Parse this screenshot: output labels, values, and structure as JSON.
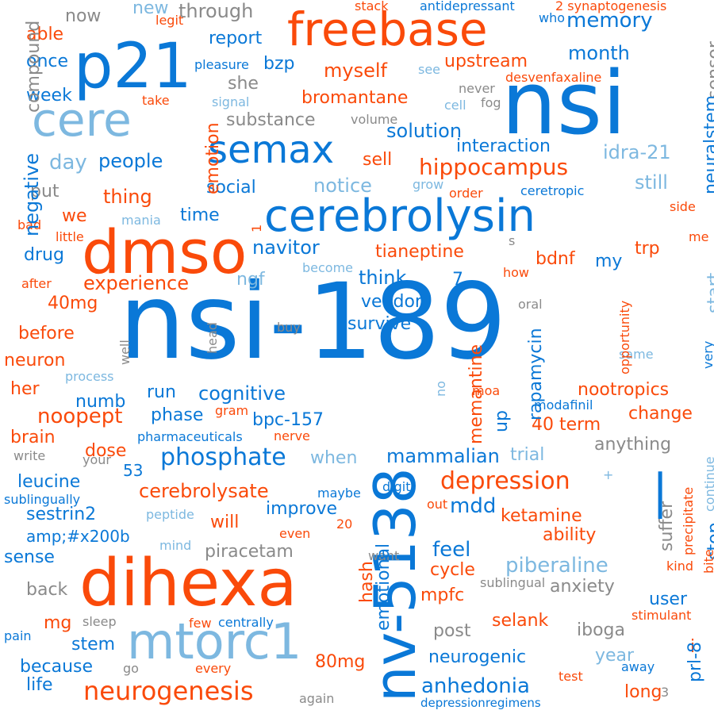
{
  "palette": {
    "blue": "#0a78d7",
    "orange": "#fa4a0a",
    "light_blue": "#7db8e0",
    "gray": "#8a8a8a"
  },
  "words": [
    {
      "text": "nsi-189",
      "size": 132,
      "color": "#0a78d7",
      "rotate": false
    },
    {
      "text": "nv-5138",
      "size": 72,
      "color": "#0a78d7",
      "rotate": true
    },
    {
      "text": "dihexa",
      "size": 82,
      "color": "#fa4a0a",
      "rotate": false
    },
    {
      "text": "nsi",
      "size": 110,
      "color": "#0a78d7",
      "rotate": false
    },
    {
      "text": "p21",
      "size": 78,
      "color": "#0a78d7",
      "rotate": false
    },
    {
      "text": "freebase",
      "size": 58,
      "color": "#fa4a0a",
      "rotate": false
    },
    {
      "text": "cerebrolysin",
      "size": 56,
      "color": "#0a78d7",
      "rotate": false
    },
    {
      "text": "dmso",
      "size": 76,
      "color": "#fa4a0a",
      "rotate": false
    },
    {
      "text": "cere",
      "size": 58,
      "color": "#7db8e0",
      "rotate": false
    },
    {
      "text": "semax",
      "size": 48,
      "color": "#0a78d7",
      "rotate": false
    },
    {
      "text": "mtorc1",
      "size": 62,
      "color": "#7db8e0",
      "rotate": false
    },
    {
      "text": "neurogenesis",
      "size": 32,
      "color": "#fa4a0a",
      "rotate": false
    },
    {
      "text": "phosphate",
      "size": 30,
      "color": "#0a78d7",
      "rotate": false
    },
    {
      "text": "depression",
      "size": 30,
      "color": "#fa4a0a",
      "rotate": false
    },
    {
      "text": "hippocampus",
      "size": 28,
      "color": "#fa4a0a",
      "rotate": false
    },
    {
      "text": "anhedonia",
      "size": 26,
      "color": "#0a78d7",
      "rotate": false
    },
    {
      "text": "piberaline",
      "size": 26,
      "color": "#7db8e0",
      "rotate": false
    },
    {
      "text": "cerebrolysate",
      "size": 24,
      "color": "#fa4a0a",
      "rotate": false
    },
    {
      "text": "mammalian",
      "size": 24,
      "color": "#0a78d7",
      "rotate": false
    },
    {
      "text": "noopept",
      "size": 26,
      "color": "#fa4a0a",
      "rotate": false
    },
    {
      "text": "nootropics",
      "size": 22,
      "color": "#fa4a0a",
      "rotate": false
    },
    {
      "text": "ketamine",
      "size": 22,
      "color": "#fa4a0a",
      "rotate": false
    },
    {
      "text": "neurogenic",
      "size": 22,
      "color": "#0a78d7",
      "rotate": false
    },
    {
      "text": "experience",
      "size": 24,
      "color": "#fa4a0a",
      "rotate": false
    },
    {
      "text": "cognitive",
      "size": 24,
      "color": "#0a78d7",
      "rotate": false
    },
    {
      "text": "solution",
      "size": 24,
      "color": "#0a78d7",
      "rotate": false
    },
    {
      "text": "interaction",
      "size": 22,
      "color": "#0a78d7",
      "rotate": false
    },
    {
      "text": "memory",
      "size": 26,
      "color": "#0a78d7",
      "rotate": false
    },
    {
      "text": "upstream",
      "size": 22,
      "color": "#fa4a0a",
      "rotate": false
    },
    {
      "text": "bromantane",
      "size": 22,
      "color": "#fa4a0a",
      "rotate": false
    },
    {
      "text": "substance",
      "size": 22,
      "color": "#8a8a8a",
      "rotate": false
    },
    {
      "text": "tianeptine",
      "size": 22,
      "color": "#fa4a0a",
      "rotate": false
    },
    {
      "text": "navitor",
      "size": 24,
      "color": "#0a78d7",
      "rotate": false
    },
    {
      "text": "survive",
      "size": 22,
      "color": "#0a78d7",
      "rotate": false
    },
    {
      "text": "vendor",
      "size": 22,
      "color": "#0a78d7",
      "rotate": false
    },
    {
      "text": "think",
      "size": 24,
      "color": "#0a78d7",
      "rotate": false
    },
    {
      "text": "notice",
      "size": 24,
      "color": "#7db8e0",
      "rotate": false
    },
    {
      "text": "social",
      "size": 22,
      "color": "#0a78d7",
      "rotate": false
    },
    {
      "text": "myself",
      "size": 24,
      "color": "#fa4a0a",
      "rotate": false
    },
    {
      "text": "report",
      "size": 22,
      "color": "#0a78d7",
      "rotate": false
    },
    {
      "text": "through",
      "size": 24,
      "color": "#8a8a8a",
      "rotate": false
    },
    {
      "text": "month",
      "size": 24,
      "color": "#0a78d7",
      "rotate": false
    },
    {
      "text": "idra-21",
      "size": 24,
      "color": "#7db8e0",
      "rotate": false
    },
    {
      "text": "still",
      "size": 24,
      "color": "#7db8e0",
      "rotate": false
    },
    {
      "text": "people",
      "size": 24,
      "color": "#0a78d7",
      "rotate": false
    },
    {
      "text": "day",
      "size": 26,
      "color": "#7db8e0",
      "rotate": false
    },
    {
      "text": "thing",
      "size": 24,
      "color": "#fa4a0a",
      "rotate": false
    },
    {
      "text": "time",
      "size": 22,
      "color": "#0a78d7",
      "rotate": false
    },
    {
      "text": "drug",
      "size": 22,
      "color": "#0a78d7",
      "rotate": false
    },
    {
      "text": "week",
      "size": 22,
      "color": "#0a78d7",
      "rotate": false
    },
    {
      "text": "once",
      "size": 22,
      "color": "#0a78d7",
      "rotate": false
    },
    {
      "text": "able",
      "size": 22,
      "color": "#fa4a0a",
      "rotate": false
    },
    {
      "text": "now",
      "size": 22,
      "color": "#8a8a8a",
      "rotate": false
    },
    {
      "text": "new",
      "size": 22,
      "color": "#7db8e0",
      "rotate": false
    },
    {
      "text": "bzp",
      "size": 22,
      "color": "#0a78d7",
      "rotate": false
    },
    {
      "text": "she",
      "size": 22,
      "color": "#8a8a8a",
      "rotate": false
    },
    {
      "text": "sell",
      "size": 22,
      "color": "#fa4a0a",
      "rotate": false
    },
    {
      "text": "put",
      "size": 22,
      "color": "#8a8a8a",
      "rotate": false
    },
    {
      "text": "we",
      "size": 22,
      "color": "#fa4a0a",
      "rotate": false
    },
    {
      "text": "ngf",
      "size": 22,
      "color": "#7db8e0",
      "rotate": false
    },
    {
      "text": "bdnf",
      "size": 22,
      "color": "#fa4a0a",
      "rotate": false
    },
    {
      "text": "my",
      "size": 22,
      "color": "#0a78d7",
      "rotate": false
    },
    {
      "text": "trp",
      "size": 22,
      "color": "#fa4a0a",
      "rotate": false
    },
    {
      "text": "7",
      "size": 22,
      "color": "#0a78d7",
      "rotate": false
    },
    {
      "text": "40mg",
      "size": 22,
      "color": "#fa4a0a",
      "rotate": false
    },
    {
      "text": "before",
      "size": 22,
      "color": "#fa4a0a",
      "rotate": false
    },
    {
      "text": "neuron",
      "size": 22,
      "color": "#fa4a0a",
      "rotate": false
    },
    {
      "text": "her",
      "size": 22,
      "color": "#fa4a0a",
      "rotate": false
    },
    {
      "text": "numb",
      "size": 22,
      "color": "#0a78d7",
      "rotate": false
    },
    {
      "text": "run",
      "size": 22,
      "color": "#0a78d7",
      "rotate": false
    },
    {
      "text": "phase",
      "size": 22,
      "color": "#0a78d7",
      "rotate": false
    },
    {
      "text": "bpc-157",
      "size": 22,
      "color": "#0a78d7",
      "rotate": false
    },
    {
      "text": "40 term",
      "size": 22,
      "color": "#fa4a0a",
      "rotate": false
    },
    {
      "text": "change",
      "size": 22,
      "color": "#fa4a0a",
      "rotate": false
    },
    {
      "text": "brain",
      "size": 22,
      "color": "#fa4a0a",
      "rotate": false
    },
    {
      "text": "dose",
      "size": 22,
      "color": "#fa4a0a",
      "rotate": false
    },
    {
      "text": "when",
      "size": 22,
      "color": "#7db8e0",
      "rotate": false
    },
    {
      "text": "trial",
      "size": 22,
      "color": "#7db8e0",
      "rotate": false
    },
    {
      "text": "anything",
      "size": 22,
      "color": "#8a8a8a",
      "rotate": false
    },
    {
      "text": "53",
      "size": 20,
      "color": "#0a78d7",
      "rotate": false
    },
    {
      "text": "leucine",
      "size": 22,
      "color": "#0a78d7",
      "rotate": false
    },
    {
      "text": "sestrin2",
      "size": 22,
      "color": "#0a78d7",
      "rotate": false
    },
    {
      "text": "amp;#x200b",
      "size": 20,
      "color": "#0a78d7",
      "rotate": false
    },
    {
      "text": "sense",
      "size": 22,
      "color": "#0a78d7",
      "rotate": false
    },
    {
      "text": "back",
      "size": 22,
      "color": "#8a8a8a",
      "rotate": false
    },
    {
      "text": "mg",
      "size": 22,
      "color": "#fa4a0a",
      "rotate": false
    },
    {
      "text": "stem",
      "size": 22,
      "color": "#0a78d7",
      "rotate": false
    },
    {
      "text": "because",
      "size": 22,
      "color": "#0a78d7",
      "rotate": false
    },
    {
      "text": "life",
      "size": 22,
      "color": "#0a78d7",
      "rotate": false
    },
    {
      "text": "improve",
      "size": 22,
      "color": "#0a78d7",
      "rotate": false
    },
    {
      "text": "will",
      "size": 22,
      "color": "#fa4a0a",
      "rotate": false
    },
    {
      "text": "piracetam",
      "size": 22,
      "color": "#8a8a8a",
      "rotate": false
    },
    {
      "text": "mdd",
      "size": 26,
      "color": "#0a78d7",
      "rotate": false
    },
    {
      "text": "feel",
      "size": 26,
      "color": "#0a78d7",
      "rotate": false
    },
    {
      "text": "cycle",
      "size": 22,
      "color": "#fa4a0a",
      "rotate": false
    },
    {
      "text": "mpfc",
      "size": 22,
      "color": "#fa4a0a",
      "rotate": false
    },
    {
      "text": "post",
      "size": 22,
      "color": "#8a8a8a",
      "rotate": false
    },
    {
      "text": "selank",
      "size": 22,
      "color": "#fa4a0a",
      "rotate": false
    },
    {
      "text": "iboga",
      "size": 22,
      "color": "#8a8a8a",
      "rotate": false
    },
    {
      "text": "anxiety",
      "size": 22,
      "color": "#8a8a8a",
      "rotate": false
    },
    {
      "text": "ability",
      "size": 22,
      "color": "#fa4a0a",
      "rotate": false
    },
    {
      "text": "user",
      "size": 22,
      "color": "#0a78d7",
      "rotate": false
    },
    {
      "text": "year",
      "size": 22,
      "color": "#7db8e0",
      "rotate": false
    },
    {
      "text": "long",
      "size": 22,
      "color": "#fa4a0a",
      "rotate": false
    },
    {
      "text": "80mg",
      "size": 22,
      "color": "#fa4a0a",
      "rotate": false
    },
    {
      "text": "i",
      "size": 22,
      "color": "#fa4a0a",
      "rotate": false
    },
    {
      "text": "modafinil",
      "size": 16,
      "color": "#0a78d7",
      "rotate": false
    },
    {
      "text": "pharmaceuticals",
      "size": 16,
      "color": "#0a78d7",
      "rotate": false
    },
    {
      "text": "depressionregimens",
      "size": 15,
      "color": "#0a78d7",
      "rotate": false
    },
    {
      "text": "desvenfaxaline",
      "size": 16,
      "color": "#fa4a0a",
      "rotate": false
    },
    {
      "text": "antidepressant",
      "size": 16,
      "color": "#0a78d7",
      "rotate": false
    },
    {
      "text": "2 synaptogenesis",
      "size": 16,
      "color": "#fa4a0a",
      "rotate": false
    },
    {
      "text": "stack",
      "size": 16,
      "color": "#fa4a0a",
      "rotate": false
    },
    {
      "text": "legit",
      "size": 16,
      "color": "#fa4a0a",
      "rotate": false
    },
    {
      "text": "who",
      "size": 16,
      "color": "#0a78d7",
      "rotate": false
    },
    {
      "text": "pleasure",
      "size": 16,
      "color": "#0a78d7",
      "rotate": false
    },
    {
      "text": "see",
      "size": 16,
      "color": "#7db8e0",
      "rotate": false
    },
    {
      "text": "never",
      "size": 16,
      "color": "#8a8a8a",
      "rotate": false
    },
    {
      "text": "take",
      "size": 16,
      "color": "#fa4a0a",
      "rotate": false
    },
    {
      "text": "signal",
      "size": 16,
      "color": "#7db8e0",
      "rotate": false
    },
    {
      "text": "cell",
      "size": 16,
      "color": "#7db8e0",
      "rotate": false
    },
    {
      "text": "fog",
      "size": 16,
      "color": "#8a8a8a",
      "rotate": false
    },
    {
      "text": "volume",
      "size": 16,
      "color": "#8a8a8a",
      "rotate": false
    },
    {
      "text": "grow",
      "size": 16,
      "color": "#7db8e0",
      "rotate": false
    },
    {
      "text": "order",
      "size": 16,
      "color": "#fa4a0a",
      "rotate": false
    },
    {
      "text": "ceretropic",
      "size": 16,
      "color": "#0a78d7",
      "rotate": false
    },
    {
      "text": "side",
      "size": 16,
      "color": "#fa4a0a",
      "rotate": false
    },
    {
      "text": "bad",
      "size": 16,
      "color": "#fa4a0a",
      "rotate": false
    },
    {
      "text": "mania",
      "size": 16,
      "color": "#7db8e0",
      "rotate": false
    },
    {
      "text": "little",
      "size": 16,
      "color": "#fa4a0a",
      "rotate": false
    },
    {
      "text": "me",
      "size": 16,
      "color": "#fa4a0a",
      "rotate": false
    },
    {
      "text": "s",
      "size": 16,
      "color": "#8a8a8a",
      "rotate": false
    },
    {
      "text": "become",
      "size": 16,
      "color": "#7db8e0",
      "rotate": false
    },
    {
      "text": "how",
      "size": 16,
      "color": "#fa4a0a",
      "rotate": false
    },
    {
      "text": "after",
      "size": 16,
      "color": "#fa4a0a",
      "rotate": false
    },
    {
      "text": "oral",
      "size": 16,
      "color": "#8a8a8a",
      "rotate": false
    },
    {
      "text": "buy",
      "size": 16,
      "color": "#8a8a8a",
      "rotate": false
    },
    {
      "text": "same",
      "size": 16,
      "color": "#7db8e0",
      "rotate": false
    },
    {
      "text": "process",
      "size": 16,
      "color": "#7db8e0",
      "rotate": false
    },
    {
      "text": "moa",
      "size": 16,
      "color": "#fa4a0a",
      "rotate": false
    },
    {
      "text": "gram",
      "size": 16,
      "color": "#fa4a0a",
      "rotate": false
    },
    {
      "text": "nerve",
      "size": 16,
      "color": "#fa4a0a",
      "rotate": false
    },
    {
      "text": "write",
      "size": 16,
      "color": "#8a8a8a",
      "rotate": false
    },
    {
      "text": "your",
      "size": 16,
      "color": "#8a8a8a",
      "rotate": false
    },
    {
      "text": "sublingually",
      "size": 16,
      "color": "#0a78d7",
      "rotate": false
    },
    {
      "text": "peptide",
      "size": 16,
      "color": "#7db8e0",
      "rotate": false
    },
    {
      "text": "maybe",
      "size": 16,
      "color": "#0a78d7",
      "rotate": false
    },
    {
      "text": "digit",
      "size": 16,
      "color": "#0a78d7",
      "rotate": false
    },
    {
      "text": "out",
      "size": 16,
      "color": "#fa4a0a",
      "rotate": false
    },
    {
      "text": "+",
      "size": 16,
      "color": "#7db8e0",
      "rotate": false
    },
    {
      "text": "20",
      "size": 16,
      "color": "#fa4a0a",
      "rotate": false
    },
    {
      "text": "even",
      "size": 16,
      "color": "#fa4a0a",
      "rotate": false
    },
    {
      "text": "mind",
      "size": 16,
      "color": "#7db8e0",
      "rotate": false
    },
    {
      "text": "want",
      "size": 16,
      "color": "#8a8a8a",
      "rotate": false
    },
    {
      "text": "sublingual",
      "size": 16,
      "color": "#8a8a8a",
      "rotate": false
    },
    {
      "text": "kind",
      "size": 16,
      "color": "#fa4a0a",
      "rotate": false
    },
    {
      "text": "stimulant",
      "size": 16,
      "color": "#fa4a0a",
      "rotate": false
    },
    {
      "text": "sleep",
      "size": 16,
      "color": "#8a8a8a",
      "rotate": false
    },
    {
      "text": "few",
      "size": 16,
      "color": "#fa4a0a",
      "rotate": false
    },
    {
      "text": "centrally",
      "size": 16,
      "color": "#0a78d7",
      "rotate": false
    },
    {
      "text": "pain",
      "size": 16,
      "color": "#0a78d7",
      "rotate": false
    },
    {
      "text": "go",
      "size": 16,
      "color": "#8a8a8a",
      "rotate": false
    },
    {
      "text": "every",
      "size": 16,
      "color": "#fa4a0a",
      "rotate": false
    },
    {
      "text": "away",
      "size": 16,
      "color": "#0a78d7",
      "rotate": false
    },
    {
      "text": "test",
      "size": 16,
      "color": "#fa4a0a",
      "rotate": false
    },
    {
      "text": "3",
      "size": 16,
      "color": "#8a8a8a",
      "rotate": false
    },
    {
      "text": "again",
      "size": 16,
      "color": "#8a8a8a",
      "rotate": false
    },
    {
      "text": "compound",
      "size": 22,
      "color": "#8a8a8a",
      "rotate": true
    },
    {
      "text": "negative",
      "size": 24,
      "color": "#0a78d7",
      "rotate": true
    },
    {
      "text": "emotion",
      "size": 22,
      "color": "#fa4a0a",
      "rotate": true
    },
    {
      "text": "sensor",
      "size": 22,
      "color": "#8a8a8a",
      "rotate": true
    },
    {
      "text": "neuralstem",
      "size": 22,
      "color": "#0a78d7",
      "rotate": true
    },
    {
      "text": "memantine",
      "size": 22,
      "color": "#fa4a0a",
      "rotate": true
    },
    {
      "text": "rapamycin",
      "size": 22,
      "color": "#0a78d7",
      "rotate": true
    },
    {
      "text": "up",
      "size": 22,
      "color": "#0a78d7",
      "rotate": true
    },
    {
      "text": "emotional",
      "size": 22,
      "color": "#0a78d7",
      "rotate": true
    },
    {
      "text": "hash",
      "size": 22,
      "color": "#fa4a0a",
      "rotate": true
    },
    {
      "text": "suffer",
      "size": 22,
      "color": "#8a8a8a",
      "rotate": true
    },
    {
      "text": "stop",
      "size": 22,
      "color": "#0a78d7",
      "rotate": true
    },
    {
      "text": "prl-8",
      "size": 22,
      "color": "#0a78d7",
      "rotate": true
    },
    {
      "text": "start",
      "size": 22,
      "color": "#7db8e0",
      "rotate": true
    },
    {
      "text": "|",
      "size": 60,
      "color": "#0a78d7",
      "rotate": false
    },
    {
      "text": "opportunity",
      "size": 16,
      "color": "#fa4a0a",
      "rotate": true
    },
    {
      "text": "very",
      "size": 16,
      "color": "#0a78d7",
      "rotate": true
    },
    {
      "text": "precipitate",
      "size": 16,
      "color": "#fa4a0a",
      "rotate": true
    },
    {
      "text": "continue",
      "size": 16,
      "color": "#7db8e0",
      "rotate": true
    },
    {
      "text": "bite",
      "size": 16,
      "color": "#fa4a0a",
      "rotate": true
    },
    {
      "text": "well",
      "size": 16,
      "color": "#8a8a8a",
      "rotate": true
    },
    {
      "text": "head",
      "size": 16,
      "color": "#8a8a8a",
      "rotate": true
    },
    {
      "text": "no",
      "size": 16,
      "color": "#7db8e0",
      "rotate": true
    },
    {
      "text": "1",
      "size": 16,
      "color": "#fa4a0a",
      "rotate": true
    }
  ]
}
